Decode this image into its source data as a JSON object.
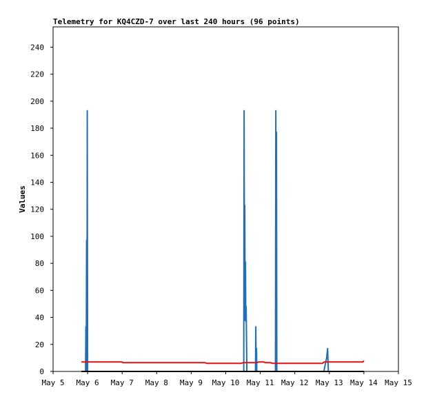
{
  "chart_data": {
    "type": "line",
    "title": "Telemetry for KQ4CZD-7 over last 240 hours (96 points)",
    "xlabel": "",
    "ylabel": "Values",
    "xlim": [
      "May 5",
      "May 15"
    ],
    "ylim": [
      0,
      255
    ],
    "x_ticks": [
      "May 5",
      "May 6",
      "May 7",
      "May 8",
      "May 9",
      "May 10",
      "May 11",
      "May 12",
      "May 13",
      "May 14",
      "May 15"
    ],
    "y_ticks": [
      0,
      20,
      40,
      60,
      80,
      100,
      120,
      140,
      160,
      180,
      200,
      220,
      240
    ],
    "grid": false,
    "legend": "none",
    "series": [
      {
        "color": "#1f6fbf",
        "points": [
          [
            0.94,
            0
          ],
          [
            0.95,
            33
          ],
          [
            0.96,
            0
          ],
          [
            0.97,
            97
          ],
          [
            0.98,
            0
          ],
          [
            0.99,
            193
          ],
          [
            1.0,
            0
          ],
          [
            5.52,
            0
          ],
          [
            5.53,
            193
          ],
          [
            5.545,
            38
          ],
          [
            5.55,
            123
          ],
          [
            5.56,
            40
          ],
          [
            5.57,
            81
          ],
          [
            5.58,
            37
          ],
          [
            5.59,
            48
          ],
          [
            5.6,
            25
          ],
          [
            5.61,
            0
          ],
          [
            5.86,
            0
          ],
          [
            5.87,
            33
          ],
          [
            5.88,
            0
          ],
          [
            5.89,
            17
          ],
          [
            5.9,
            0
          ],
          [
            6.44,
            0
          ],
          [
            6.45,
            193
          ],
          [
            6.46,
            0
          ],
          [
            6.47,
            177
          ],
          [
            6.48,
            0
          ],
          [
            7.84,
            0
          ],
          [
            7.88,
            5
          ],
          [
            7.92,
            10
          ],
          [
            7.95,
            17
          ],
          [
            7.97,
            0
          ]
        ]
      },
      {
        "color": "#e01010",
        "points": [
          [
            0.82,
            7
          ],
          [
            1.0,
            7
          ],
          [
            2.0,
            7
          ],
          [
            2.02,
            6.5
          ],
          [
            3.0,
            6.5
          ],
          [
            4.4,
            6.5
          ],
          [
            4.45,
            6
          ],
          [
            5.0,
            6
          ],
          [
            5.45,
            6
          ],
          [
            5.5,
            6.5
          ],
          [
            5.9,
            6.5
          ],
          [
            5.95,
            7
          ],
          [
            6.1,
            7
          ],
          [
            6.15,
            6.5
          ],
          [
            6.3,
            6.5
          ],
          [
            6.35,
            6
          ],
          [
            7.0,
            6
          ],
          [
            7.8,
            6
          ],
          [
            7.85,
            7
          ],
          [
            8.0,
            7
          ],
          [
            8.97,
            7
          ],
          [
            9.0,
            8
          ]
        ]
      },
      {
        "color": "#000000",
        "points": [
          [
            0.82,
            0
          ],
          [
            9.0,
            0
          ]
        ]
      }
    ]
  }
}
